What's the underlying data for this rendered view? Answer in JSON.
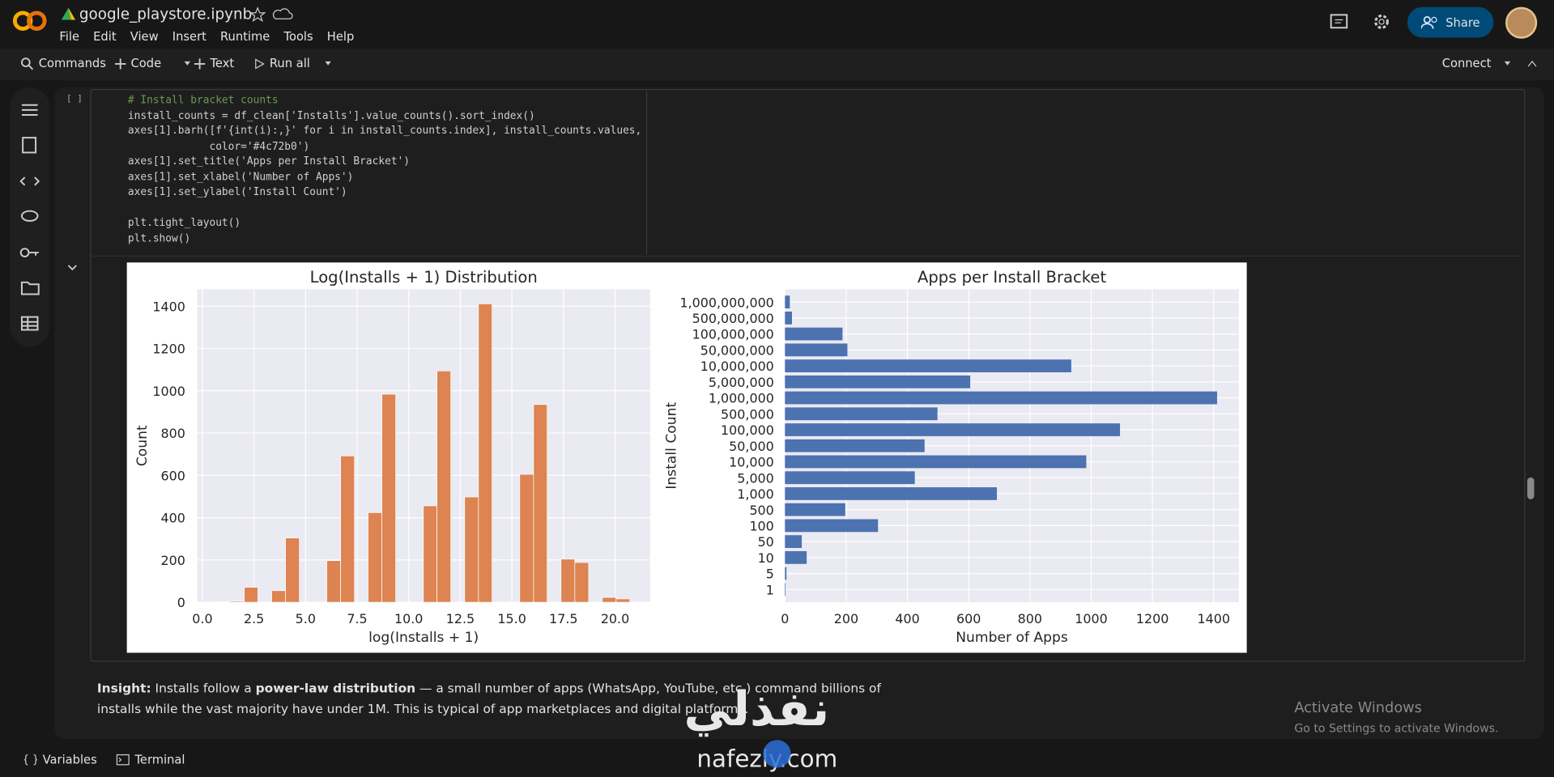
{
  "header": {
    "notebook_title": "google_playstore.ipynb",
    "menu": [
      "File",
      "Edit",
      "View",
      "Insert",
      "Runtime",
      "Tools",
      "Help"
    ],
    "share": "Share"
  },
  "toolbar": {
    "commands": "Commands",
    "code": "Code",
    "text": "Text",
    "run_all": "Run all",
    "connect": "Connect"
  },
  "cell": {
    "bracket": "[ ]",
    "code_lines": [
      "# Install bracket counts",
      "install_counts = df_clean['Installs'].value_counts().sort_index()",
      "axes[1].barh([f'{int(i):,}' for i in install_counts.index], install_counts.values,",
      "             color='#4c72b0')",
      "axes[1].set_title('Apps per Install Bracket')",
      "axes[1].set_xlabel('Number of Apps')",
      "axes[1].set_ylabel('Install Count')",
      "plt.tight_layout()",
      "plt.show()"
    ]
  },
  "chart_data": [
    {
      "type": "histogram",
      "title": "Log(Installs + 1) Distribution",
      "x_label": "log(Installs + 1)",
      "y_label": "Count",
      "color": "#dd8452",
      "bins": [
        0.69,
        1.36,
        2.03,
        2.69,
        3.36,
        4.03,
        4.7,
        5.36,
        6.03,
        6.7,
        7.37,
        8.03,
        8.7,
        9.37,
        10.04,
        10.71,
        11.37,
        12.04,
        12.71,
        13.38,
        14.04,
        14.71,
        15.38,
        16.05,
        16.71,
        17.38,
        18.05,
        18.72,
        19.38,
        20.05,
        20.72
      ],
      "values": [
        2,
        5,
        71,
        0,
        55,
        304,
        0,
        0,
        197,
        692,
        0,
        424,
        984,
        0,
        0,
        456,
        1094,
        0,
        498,
        1411,
        0,
        0,
        605,
        935,
        0,
        204,
        188,
        0,
        23,
        16
      ],
      "xlim": [
        -0.25,
        21.7
      ],
      "xticks": [
        {
          "value": 0,
          "label": "0.0"
        },
        2.5,
        {
          "value": 5,
          "label": "5.0"
        },
        7.5,
        {
          "value": 10,
          "label": "10.0"
        },
        12.5,
        {
          "value": 15,
          "label": "15.0"
        },
        17.5,
        {
          "value": 20,
          "label": "20.0"
        }
      ],
      "ylim": [
        0,
        1480
      ],
      "yticks": [
        0,
        200,
        400,
        600,
        800,
        1000,
        1200,
        1400
      ],
      "grid": true
    },
    {
      "type": "barh",
      "title": "Apps per Install Bracket",
      "x_label": "Number of Apps",
      "y_label": "Install Count",
      "color": "#4c72b0",
      "categories": [
        "1",
        "5",
        "10",
        "50",
        "100",
        "500",
        "1,000",
        "5,000",
        "10,000",
        "50,000",
        "100,000",
        "500,000",
        "1,000,000",
        "5,000,000",
        "10,000,000",
        "50,000,000",
        "100,000,000",
        "500,000,000",
        "1,000,000,000"
      ],
      "values": [
        2,
        5,
        71,
        55,
        304,
        197,
        692,
        424,
        984,
        456,
        1094,
        498,
        1411,
        605,
        935,
        204,
        188,
        23,
        16
      ],
      "xlim": [
        0,
        1482
      ],
      "xticks": [
        0,
        200,
        400,
        600,
        800,
        1000,
        1200,
        1400
      ],
      "grid": true
    }
  ],
  "insight": {
    "runs": [
      {
        "text": "Insight:",
        "bold": true
      },
      {
        "text": " Installs follow a ",
        "bold": false
      },
      {
        "text": "power-law distribution",
        "bold": true
      },
      {
        "text": " — a small number of apps (WhatsApp, YouTube, etc.) command billions of installs while the vast majority have under 1M. This is typical of app marketplaces and digital platforms.",
        "bold": false
      }
    ]
  },
  "footer": {
    "variables": "Variables",
    "terminal": "Terminal"
  },
  "windows_notice": {
    "title": "Activate Windows",
    "subtitle": "Go to Settings to activate Windows."
  },
  "watermark": {
    "arabic": "نفذلي",
    "site": "nafezly.com"
  }
}
